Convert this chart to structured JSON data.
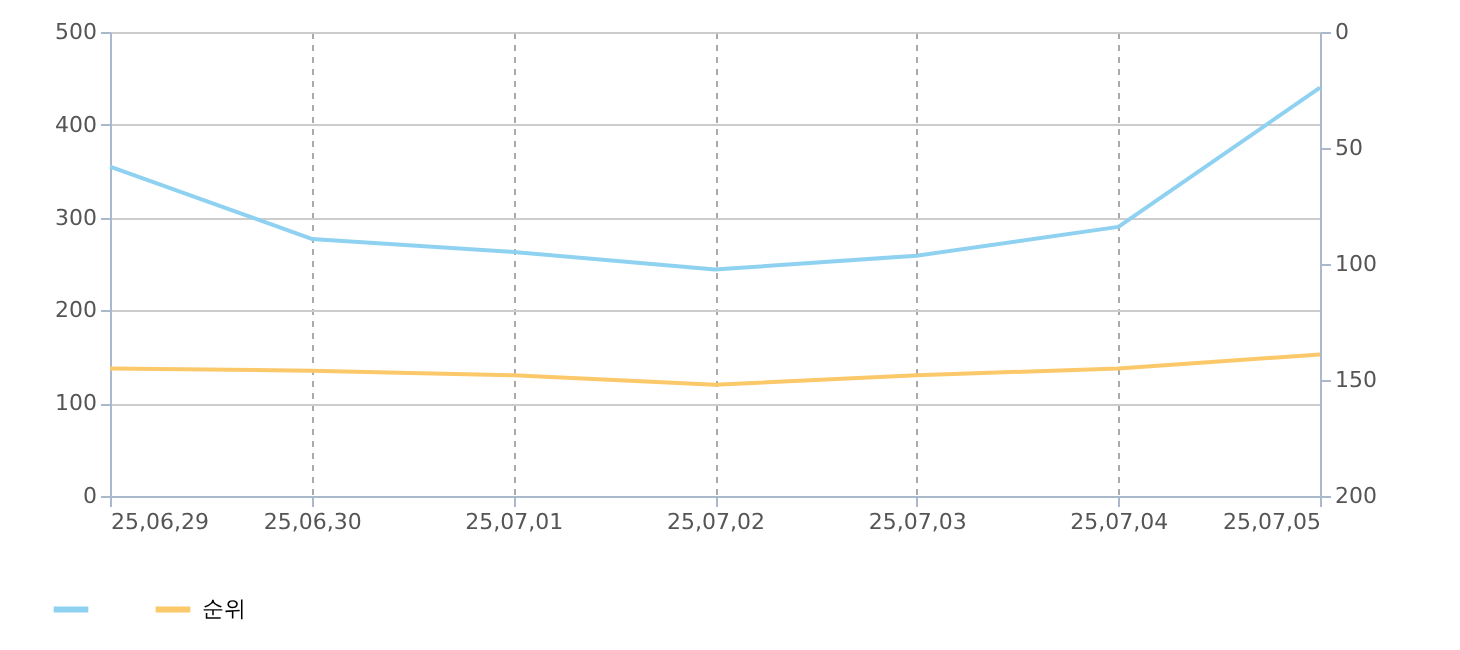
{
  "chart_data": {
    "type": "line",
    "categories": [
      "25,06,29",
      "25,06,30",
      "25,07,01",
      "25,07,02",
      "25,07,03",
      "25,07,04",
      "25,07,05"
    ],
    "series": [
      {
        "color": "#8fd1f0",
        "values": [
          355,
          277,
          263,
          244,
          259,
          290,
          440
        ]
      },
      {
        "name": "순위",
        "color": "#fbc86a",
        "axis": "y2",
        "values": [
          145,
          146,
          148,
          152,
          148,
          145,
          139
        ]
      }
    ],
    "ylim": [
      0,
      500
    ],
    "yticks": [
      0,
      100,
      200,
      300,
      400,
      500
    ],
    "y2lim": [
      200,
      0
    ],
    "y2ticks": [
      0,
      50,
      100,
      150,
      200
    ],
    "grid": true,
    "legend": "bottom left",
    "marker": "none",
    "line_style": "solid"
  }
}
